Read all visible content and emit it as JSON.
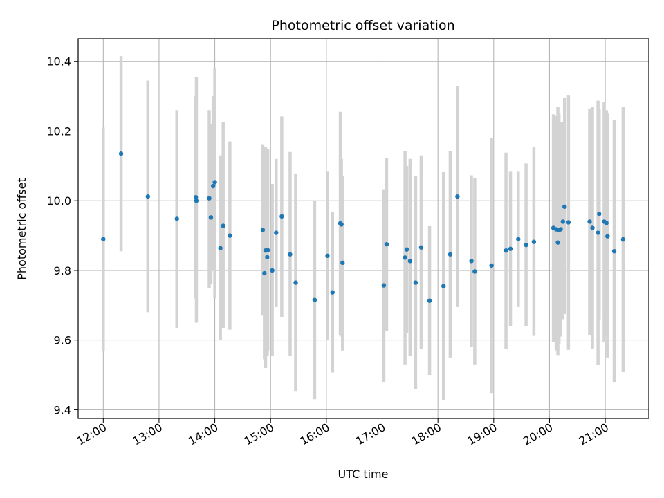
{
  "chart_data": {
    "type": "scatter",
    "title": "Photometric offset variation",
    "xlabel": "UTC time",
    "ylabel": "Photometric offset",
    "grid": true,
    "xlim": [
      11.55,
      21.78
    ],
    "ylim": [
      9.375,
      10.465
    ],
    "x_ticks": [
      {
        "value": 12,
        "label": "12:00"
      },
      {
        "value": 13,
        "label": "13:00"
      },
      {
        "value": 14,
        "label": "14:00"
      },
      {
        "value": 15,
        "label": "15:00"
      },
      {
        "value": 16,
        "label": "16:00"
      },
      {
        "value": 17,
        "label": "17:00"
      },
      {
        "value": 18,
        "label": "18:00"
      },
      {
        "value": 19,
        "label": "19:00"
      },
      {
        "value": 20,
        "label": "20:00"
      },
      {
        "value": 21,
        "label": "21:00"
      }
    ],
    "y_ticks": [
      {
        "value": 9.4,
        "label": "9.4"
      },
      {
        "value": 9.6,
        "label": "9.6"
      },
      {
        "value": 9.8,
        "label": "9.8"
      },
      {
        "value": 10.0,
        "label": "10.0"
      },
      {
        "value": 10.2,
        "label": "10.2"
      },
      {
        "value": 10.4,
        "label": "10.4"
      }
    ],
    "colors": {
      "point": "#1f77b4",
      "errorbar": "#d3d3d3",
      "grid": "#b0b0b0"
    },
    "points": [
      {
        "x": 12.0,
        "y": 9.89,
        "err_low": 9.57,
        "err_high": 10.21
      },
      {
        "x": 12.32,
        "y": 10.135,
        "err_low": 9.855,
        "err_high": 10.415
      },
      {
        "x": 12.8,
        "y": 10.012,
        "err_low": 9.68,
        "err_high": 10.345
      },
      {
        "x": 13.32,
        "y": 9.948,
        "err_low": 9.635,
        "err_high": 10.26
      },
      {
        "x": 13.66,
        "y": 10.01,
        "err_low": 9.72,
        "err_high": 10.3
      },
      {
        "x": 13.67,
        "y": 10.0,
        "err_low": 9.65,
        "err_high": 10.355
      },
      {
        "x": 13.9,
        "y": 10.007,
        "err_low": 9.75,
        "err_high": 10.26
      },
      {
        "x": 13.93,
        "y": 9.952,
        "err_low": 9.76,
        "err_high": 10.22
      },
      {
        "x": 13.97,
        "y": 10.042,
        "err_low": 9.8,
        "err_high": 10.3
      },
      {
        "x": 14.0,
        "y": 10.053,
        "err_low": 9.72,
        "err_high": 10.38
      },
      {
        "x": 14.1,
        "y": 9.864,
        "err_low": 9.6,
        "err_high": 10.13
      },
      {
        "x": 14.15,
        "y": 9.928,
        "err_low": 9.635,
        "err_high": 10.225
      },
      {
        "x": 14.27,
        "y": 9.9,
        "err_low": 9.63,
        "err_high": 10.17
      },
      {
        "x": 14.86,
        "y": 9.916,
        "err_low": 9.67,
        "err_high": 10.162
      },
      {
        "x": 14.89,
        "y": 9.792,
        "err_low": 9.545,
        "err_high": 10.04
      },
      {
        "x": 14.91,
        "y": 9.857,
        "err_low": 9.52,
        "err_high": 10.155
      },
      {
        "x": 14.94,
        "y": 9.838,
        "err_low": 9.555,
        "err_high": 10.12
      },
      {
        "x": 14.95,
        "y": 9.858,
        "err_low": 9.57,
        "err_high": 10.148
      },
      {
        "x": 15.03,
        "y": 9.8,
        "err_low": 9.555,
        "err_high": 10.048
      },
      {
        "x": 15.1,
        "y": 9.908,
        "err_low": 9.695,
        "err_high": 10.12
      },
      {
        "x": 15.2,
        "y": 9.955,
        "err_low": 9.665,
        "err_high": 10.242
      },
      {
        "x": 15.35,
        "y": 9.846,
        "err_low": 9.555,
        "err_high": 10.14
      },
      {
        "x": 15.45,
        "y": 9.765,
        "err_low": 9.452,
        "err_high": 10.078
      },
      {
        "x": 15.79,
        "y": 9.715,
        "err_low": 9.43,
        "err_high": 10.0
      },
      {
        "x": 16.02,
        "y": 9.842,
        "err_low": 9.6,
        "err_high": 10.085
      },
      {
        "x": 16.11,
        "y": 9.737,
        "err_low": 9.507,
        "err_high": 9.967
      },
      {
        "x": 16.25,
        "y": 9.935,
        "err_low": 9.615,
        "err_high": 10.255
      },
      {
        "x": 16.27,
        "y": 9.932,
        "err_low": 9.61,
        "err_high": 10.12
      },
      {
        "x": 16.29,
        "y": 9.822,
        "err_low": 9.57,
        "err_high": 10.072
      },
      {
        "x": 17.03,
        "y": 9.757,
        "err_low": 9.48,
        "err_high": 10.033
      },
      {
        "x": 17.08,
        "y": 9.875,
        "err_low": 9.627,
        "err_high": 10.123
      },
      {
        "x": 17.41,
        "y": 9.837,
        "err_low": 9.53,
        "err_high": 10.142
      },
      {
        "x": 17.44,
        "y": 9.86,
        "err_low": 9.62,
        "err_high": 10.1
      },
      {
        "x": 17.5,
        "y": 9.827,
        "err_low": 9.555,
        "err_high": 10.12
      },
      {
        "x": 17.6,
        "y": 9.765,
        "err_low": 9.46,
        "err_high": 10.07
      },
      {
        "x": 17.7,
        "y": 9.866,
        "err_low": 9.575,
        "err_high": 10.13
      },
      {
        "x": 17.85,
        "y": 9.713,
        "err_low": 9.5,
        "err_high": 9.927
      },
      {
        "x": 18.1,
        "y": 9.755,
        "err_low": 9.428,
        "err_high": 10.082
      },
      {
        "x": 18.22,
        "y": 9.846,
        "err_low": 9.55,
        "err_high": 10.142
      },
      {
        "x": 18.35,
        "y": 10.012,
        "err_low": 9.695,
        "err_high": 10.33
      },
      {
        "x": 18.6,
        "y": 9.827,
        "err_low": 9.58,
        "err_high": 10.073
      },
      {
        "x": 18.66,
        "y": 9.797,
        "err_low": 9.53,
        "err_high": 10.065
      },
      {
        "x": 18.96,
        "y": 9.814,
        "err_low": 9.448,
        "err_high": 10.18
      },
      {
        "x": 19.22,
        "y": 9.857,
        "err_low": 9.575,
        "err_high": 10.138
      },
      {
        "x": 19.3,
        "y": 9.862,
        "err_low": 9.64,
        "err_high": 10.085
      },
      {
        "x": 19.44,
        "y": 9.89,
        "err_low": 9.695,
        "err_high": 10.085
      },
      {
        "x": 19.58,
        "y": 9.873,
        "err_low": 9.64,
        "err_high": 10.107
      },
      {
        "x": 19.72,
        "y": 9.882,
        "err_low": 9.612,
        "err_high": 10.153
      },
      {
        "x": 20.07,
        "y": 9.922,
        "err_low": 9.595,
        "err_high": 10.248
      },
      {
        "x": 20.12,
        "y": 9.918,
        "err_low": 9.57,
        "err_high": 10.245
      },
      {
        "x": 20.15,
        "y": 9.88,
        "err_low": 9.557,
        "err_high": 10.27
      },
      {
        "x": 20.17,
        "y": 9.916,
        "err_low": 9.59,
        "err_high": 10.25
      },
      {
        "x": 20.2,
        "y": 9.918,
        "err_low": 9.61,
        "err_high": 10.225
      },
      {
        "x": 20.24,
        "y": 9.94,
        "err_low": 9.66,
        "err_high": 10.225
      },
      {
        "x": 20.27,
        "y": 9.983,
        "err_low": 9.675,
        "err_high": 10.295
      },
      {
        "x": 20.34,
        "y": 9.938,
        "err_low": 9.572,
        "err_high": 10.302
      },
      {
        "x": 20.72,
        "y": 9.94,
        "err_low": 9.615,
        "err_high": 10.265
      },
      {
        "x": 20.77,
        "y": 9.922,
        "err_low": 9.575,
        "err_high": 10.27
      },
      {
        "x": 20.87,
        "y": 9.908,
        "err_low": 9.528,
        "err_high": 10.287
      },
      {
        "x": 20.89,
        "y": 9.962,
        "err_low": 9.66,
        "err_high": 10.262
      },
      {
        "x": 20.98,
        "y": 9.94,
        "err_low": 9.595,
        "err_high": 10.283
      },
      {
        "x": 21.02,
        "y": 9.936,
        "err_low": 9.612,
        "err_high": 10.26
      },
      {
        "x": 21.04,
        "y": 9.898,
        "err_low": 9.55,
        "err_high": 10.25
      },
      {
        "x": 21.16,
        "y": 9.855,
        "err_low": 9.478,
        "err_high": 10.232
      },
      {
        "x": 21.32,
        "y": 9.889,
        "err_low": 9.508,
        "err_high": 10.27
      }
    ]
  }
}
